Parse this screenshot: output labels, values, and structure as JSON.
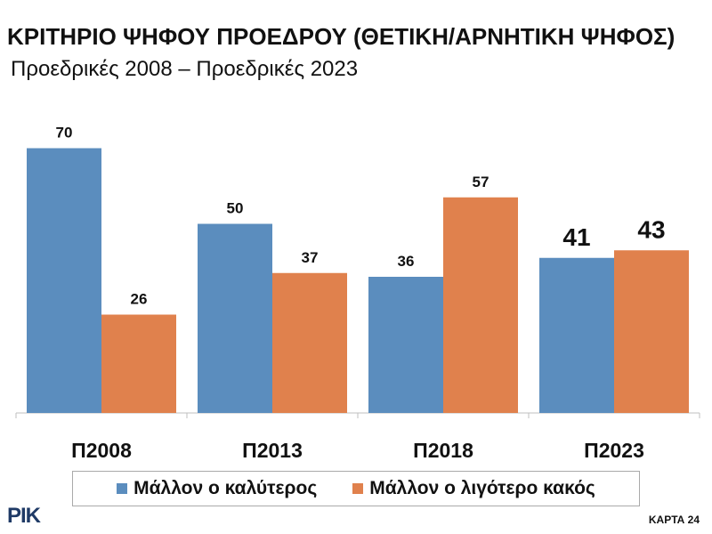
{
  "header": {
    "title": "ΚΡΙΤΗΡΙΟ ΨΗΦΟΥ ΠΡΟΕΔΡΟΥ (ΘΕΤΙΚΗ/ΑΡΝΗΤΙΚΗ ΨΗΦΟΣ)",
    "subtitle": "Προεδρικές 2008 – Προεδρικές 2023"
  },
  "chart_data": {
    "type": "bar",
    "title": "ΚΡΙΤΗΡΙΟ ΨΗΦΟΥ ΠΡΟΕΔΡΟΥ (ΘΕΤΙΚΗ/ΑΡΝΗΤΙΚΗ ΨΗΦΟΣ)",
    "subtitle": "Προεδρικές 2008 – Προεδρικές 2023",
    "categories": [
      "Π2008",
      "Π2013",
      "Π2018",
      "Π2023"
    ],
    "series": [
      {
        "name": "Μάλλον ο καλύτερος",
        "values": [
          70,
          50,
          36,
          41
        ],
        "color": "#5b8dbe"
      },
      {
        "name": "Μάλλον ο λιγότερο κακός",
        "values": [
          26,
          37,
          57,
          43
        ],
        "color": "#e0814d"
      }
    ],
    "ylim": [
      0,
      80
    ],
    "grid": false,
    "legend": "bottom",
    "emphasized_category": "Π2023",
    "axis_color": "#bfbfbf"
  },
  "footer": {
    "logo_text": "ΡΙΚ",
    "card_label": "ΚΑΡΤΑ 24"
  }
}
